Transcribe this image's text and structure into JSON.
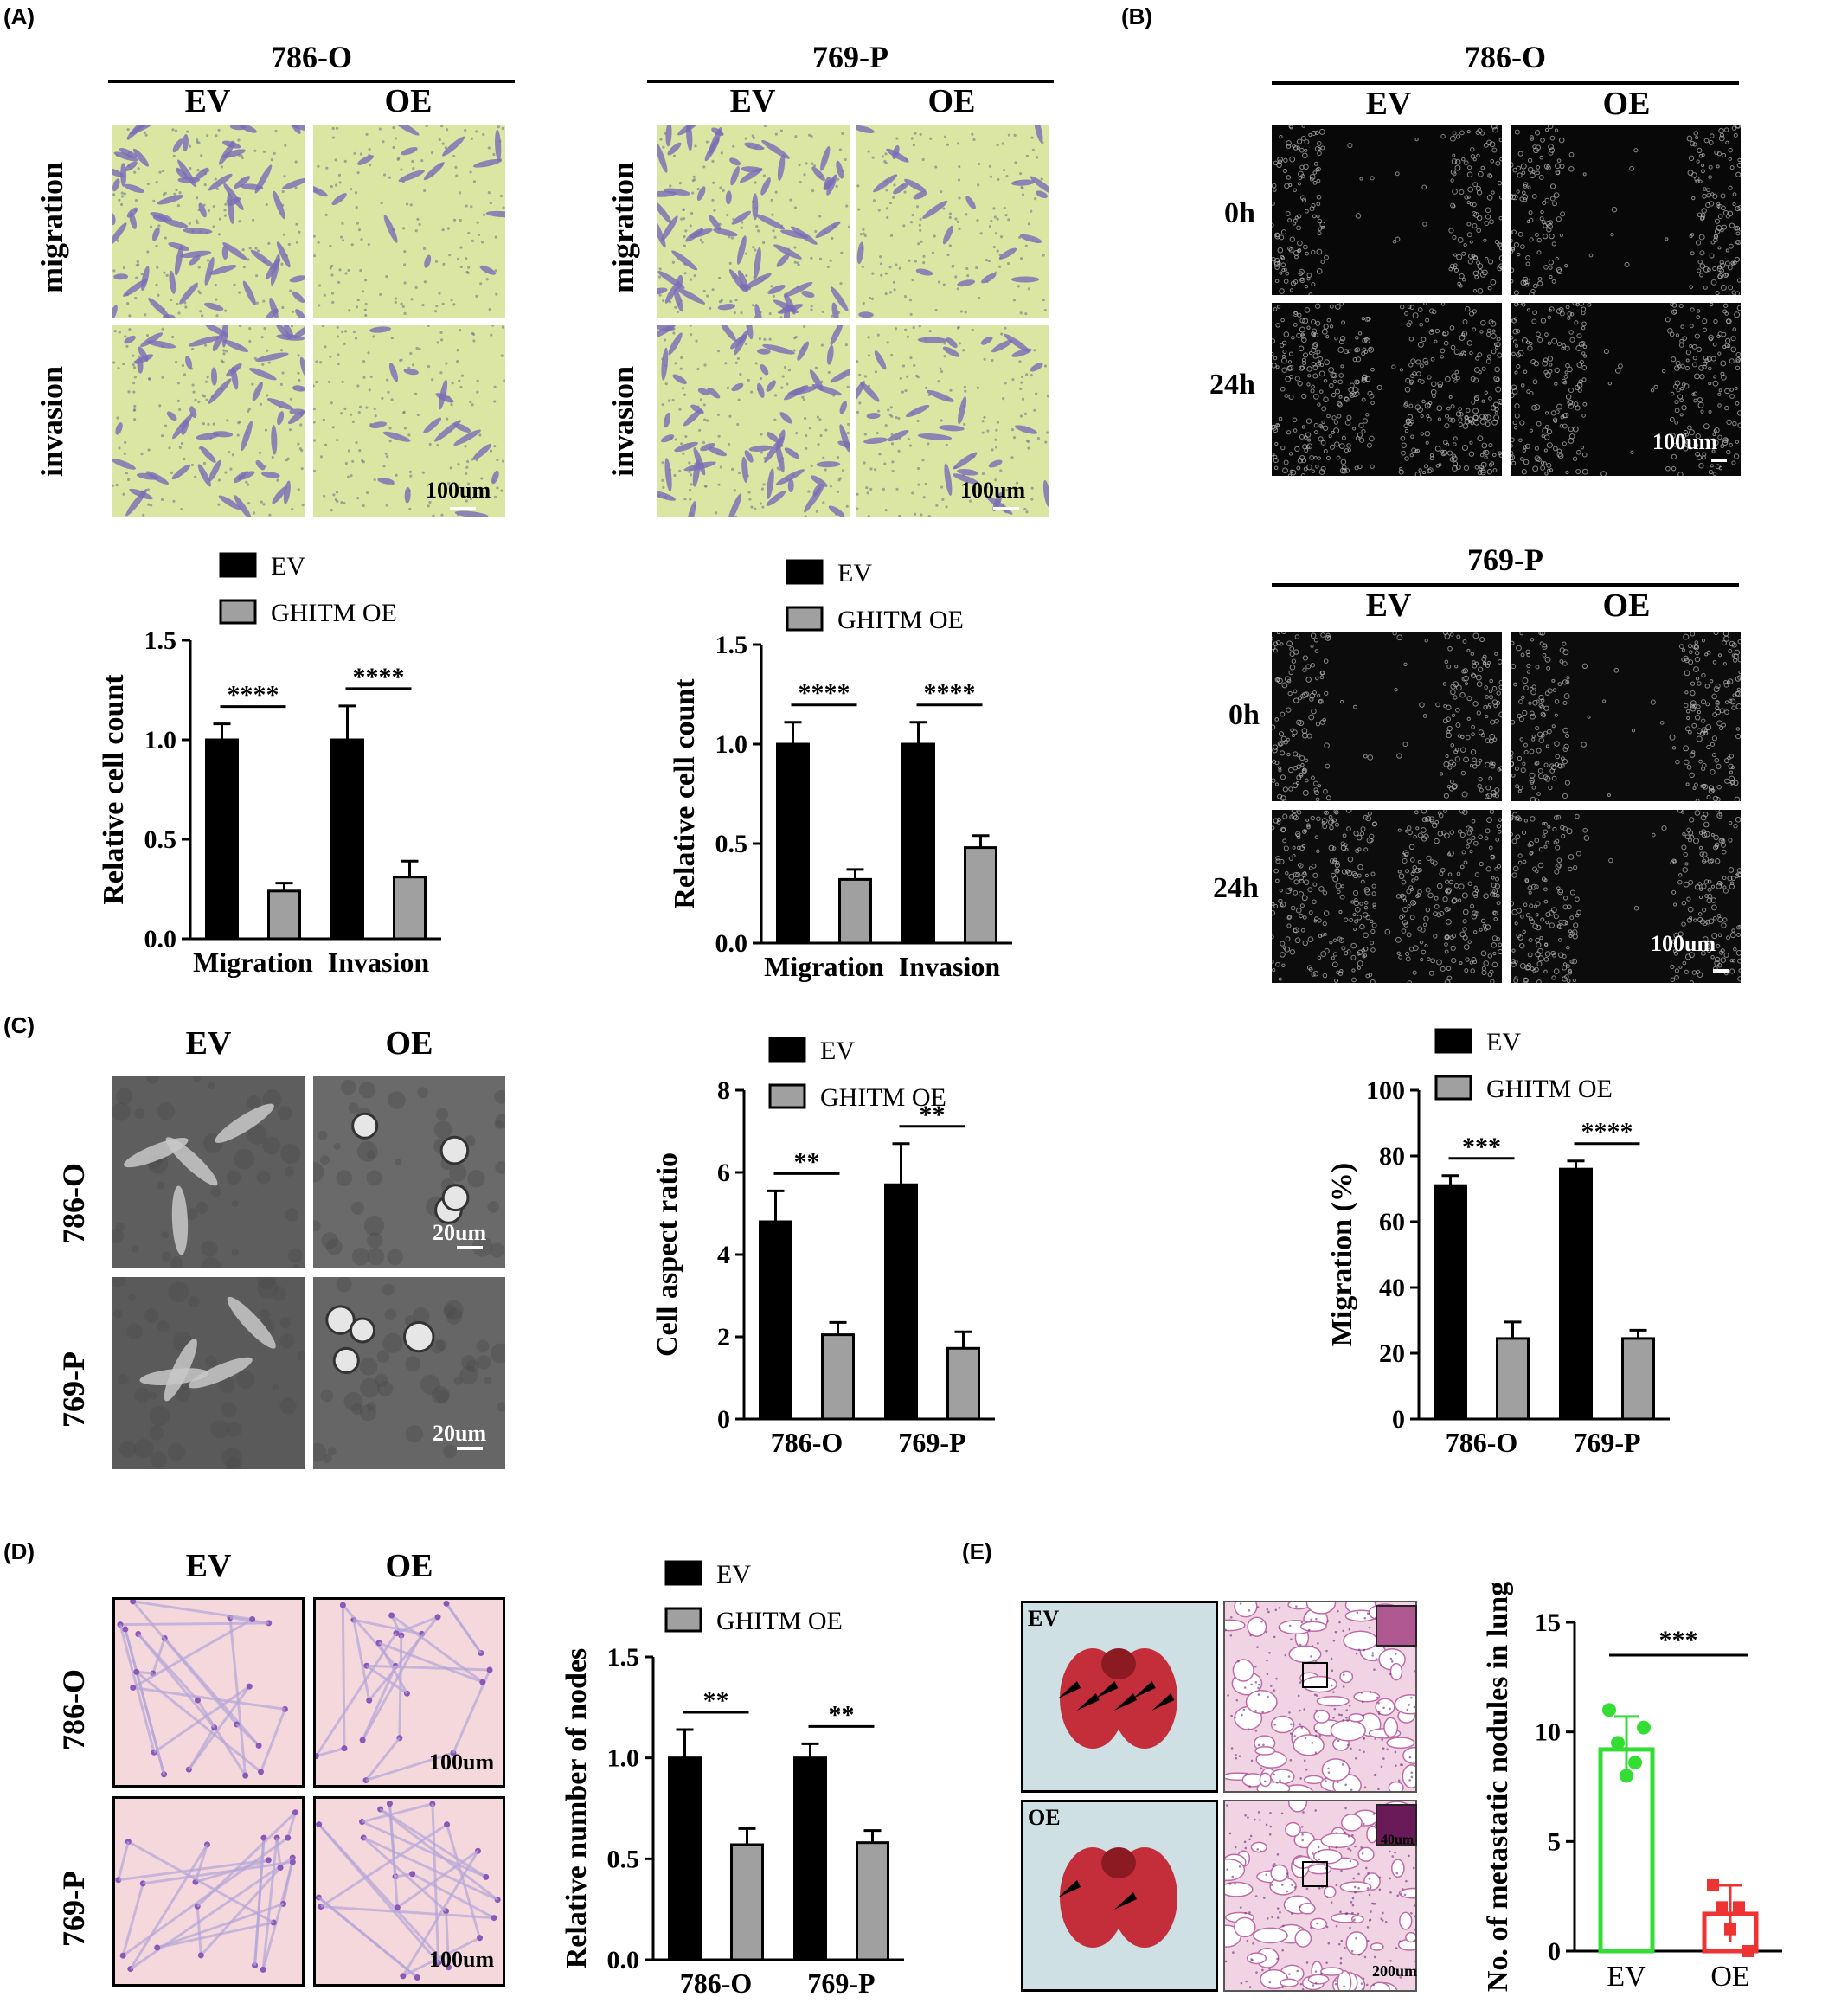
{
  "panels": {
    "A": "(A)",
    "B": "(B)",
    "C": "(C)",
    "D": "(D)",
    "E": "(E)"
  },
  "panelA": {
    "left": {
      "title": "786-O",
      "cols": [
        "EV",
        "OE"
      ],
      "rows": [
        "migration",
        "invasion"
      ],
      "scale": "100um"
    },
    "right": {
      "title": "769-P",
      "cols": [
        "EV",
        "OE"
      ],
      "rows": [
        "migration",
        "invasion"
      ],
      "scale": "100um"
    }
  },
  "panelB": {
    "top": {
      "title": "786-O",
      "cols": [
        "EV",
        "OE"
      ],
      "rows": [
        "0h",
        "24h"
      ],
      "scale": "100um"
    },
    "bottom": {
      "title": "769-P",
      "cols": [
        "EV",
        "OE"
      ],
      "rows": [
        "0h",
        "24h"
      ],
      "scale": "100um"
    }
  },
  "panelC": {
    "cols": [
      "EV",
      "OE"
    ],
    "rows": [
      "786-O",
      "769-P"
    ],
    "scale": "20um"
  },
  "panelD": {
    "cols": [
      "EV",
      "OE"
    ],
    "rows": [
      "786-O",
      "769-P"
    ],
    "scale": "100um"
  },
  "panelE": {
    "rows": [
      "EV",
      "OE"
    ],
    "scale_inset": "40um",
    "scale": "200um"
  },
  "chart_data": [
    {
      "id": "A-786O",
      "type": "bar",
      "categories": [
        "Migration",
        "Invasion"
      ],
      "series": [
        {
          "name": "EV",
          "values": [
            1.0,
            1.0
          ],
          "errors": [
            0.08,
            0.17
          ],
          "color": "#000000"
        },
        {
          "name": "GHITM OE",
          "values": [
            0.24,
            0.31
          ],
          "errors": [
            0.04,
            0.08
          ],
          "color": "#a0a0a0"
        }
      ],
      "ylabel": "Relative cell count",
      "ylim": [
        0,
        1.5
      ],
      "yticks": [
        "0.0",
        "0.5",
        "1.0",
        "1.5"
      ],
      "significance": [
        "****",
        "****"
      ],
      "legend": "top"
    },
    {
      "id": "A-769P",
      "type": "bar",
      "categories": [
        "Migration",
        "Invasion"
      ],
      "series": [
        {
          "name": "EV",
          "values": [
            1.0,
            1.0
          ],
          "errors": [
            0.11,
            0.11
          ],
          "color": "#000000"
        },
        {
          "name": "GHITM OE",
          "values": [
            0.32,
            0.48
          ],
          "errors": [
            0.05,
            0.06
          ],
          "color": "#a0a0a0"
        }
      ],
      "ylabel": "Relative cell count",
      "ylim": [
        0,
        1.5
      ],
      "yticks": [
        "0.0",
        "0.5",
        "1.0",
        "1.5"
      ],
      "significance": [
        "****",
        "****"
      ],
      "legend": "top"
    },
    {
      "id": "C-aspect",
      "type": "bar",
      "categories": [
        "786-O",
        "769-P"
      ],
      "series": [
        {
          "name": "EV",
          "values": [
            4.8,
            5.7
          ],
          "errors": [
            0.75,
            1.0
          ],
          "color": "#000000"
        },
        {
          "name": "GHITM OE",
          "values": [
            2.05,
            1.72
          ],
          "errors": [
            0.3,
            0.4
          ],
          "color": "#a0a0a0"
        }
      ],
      "ylabel": "Cell aspect ratio",
      "ylim": [
        0,
        8
      ],
      "yticks": [
        "0",
        "2",
        "4",
        "6",
        "8"
      ],
      "significance": [
        "**",
        "**"
      ],
      "legend": "top"
    },
    {
      "id": "B-migration",
      "type": "bar",
      "categories": [
        "786-O",
        "769-P"
      ],
      "series": [
        {
          "name": "EV",
          "values": [
            71,
            76
          ],
          "errors": [
            3,
            2.5
          ],
          "color": "#000000"
        },
        {
          "name": "GHITM OE",
          "values": [
            24.5,
            24.5
          ],
          "errors": [
            5,
            2.5
          ],
          "color": "#a0a0a0"
        }
      ],
      "ylabel": "Migration (%)",
      "ylim": [
        0,
        100
      ],
      "yticks": [
        "0",
        "20",
        "40",
        "60",
        "80",
        "100"
      ],
      "significance": [
        "***",
        "****"
      ],
      "legend": "top"
    },
    {
      "id": "D-nodes",
      "type": "bar",
      "categories": [
        "786-O",
        "769-P"
      ],
      "series": [
        {
          "name": "EV",
          "values": [
            1.0,
            1.0
          ],
          "errors": [
            0.14,
            0.07
          ],
          "color": "#000000"
        },
        {
          "name": "GHITM OE",
          "values": [
            0.57,
            0.58
          ],
          "errors": [
            0.08,
            0.06
          ],
          "color": "#a0a0a0"
        }
      ],
      "ylabel": "Relative number of nodes",
      "ylim": [
        0,
        1.5
      ],
      "yticks": [
        "0.0",
        "0.5",
        "1.0",
        "1.5"
      ],
      "significance": [
        "**",
        "**"
      ],
      "legend": "top"
    },
    {
      "id": "E-nodules",
      "type": "bar",
      "categories": [
        "EV",
        "OE"
      ],
      "values": [
        9.2,
        1.7
      ],
      "errors": [
        1.5,
        1.3
      ],
      "points": [
        [
          11,
          9.5,
          8,
          8.6,
          10.2
        ],
        [
          3,
          2,
          1,
          2,
          0
        ]
      ],
      "colors": [
        "#33dd33",
        "#ee3333"
      ],
      "ylabel": "No. of metastatic nodules in lung",
      "ylim": [
        0,
        15
      ],
      "yticks": [
        "0",
        "5",
        "10",
        "15"
      ],
      "significance": [
        "***"
      ]
    }
  ]
}
